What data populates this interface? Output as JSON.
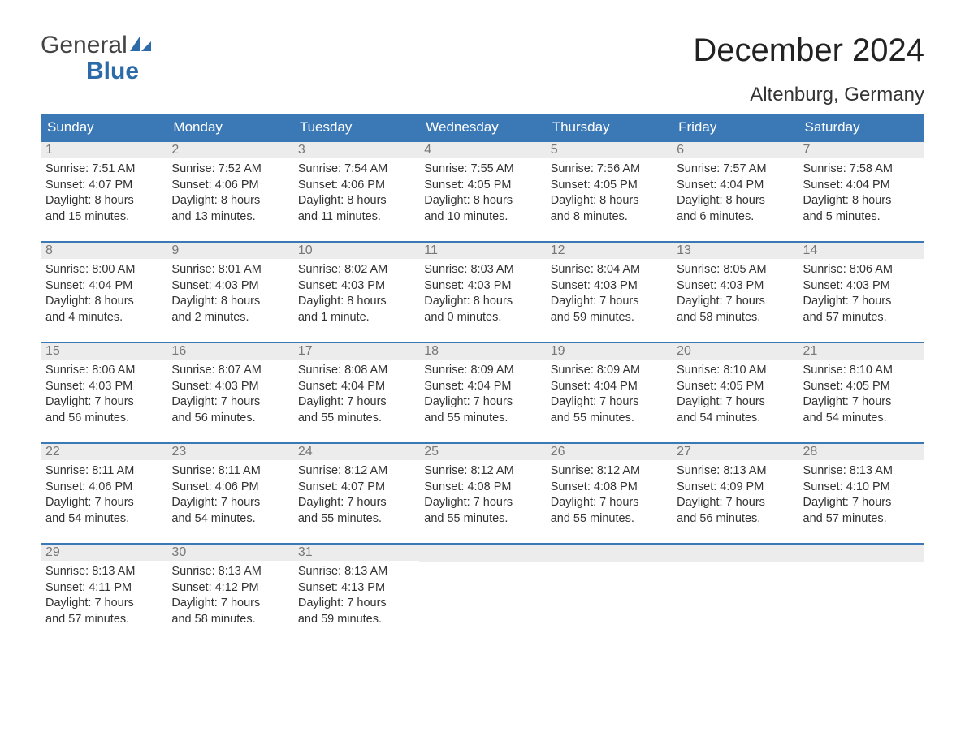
{
  "brand": {
    "line1": "General",
    "line2": "Blue",
    "color_primary": "#2d6aa8",
    "color_text": "#444444"
  },
  "title": "December 2024",
  "subtitle": "Altenburg, Germany",
  "header_bg": "#3a78b6",
  "header_fg": "#ffffff",
  "daynum_bg": "#ececec",
  "daynum_fg": "#777777",
  "body_fg": "#333333",
  "row_border_color": "#3a78b6",
  "background_color": "#ffffff",
  "title_fontsize": 40,
  "subtitle_fontsize": 24,
  "weekday_fontsize": 17,
  "body_fontsize": 14.5,
  "weekdays": [
    "Sunday",
    "Monday",
    "Tuesday",
    "Wednesday",
    "Thursday",
    "Friday",
    "Saturday"
  ],
  "weeks": [
    [
      {
        "n": "1",
        "sunrise": "Sunrise: 7:51 AM",
        "sunset": "Sunset: 4:07 PM",
        "d1": "Daylight: 8 hours",
        "d2": "and 15 minutes."
      },
      {
        "n": "2",
        "sunrise": "Sunrise: 7:52 AM",
        "sunset": "Sunset: 4:06 PM",
        "d1": "Daylight: 8 hours",
        "d2": "and 13 minutes."
      },
      {
        "n": "3",
        "sunrise": "Sunrise: 7:54 AM",
        "sunset": "Sunset: 4:06 PM",
        "d1": "Daylight: 8 hours",
        "d2": "and 11 minutes."
      },
      {
        "n": "4",
        "sunrise": "Sunrise: 7:55 AM",
        "sunset": "Sunset: 4:05 PM",
        "d1": "Daylight: 8 hours",
        "d2": "and 10 minutes."
      },
      {
        "n": "5",
        "sunrise": "Sunrise: 7:56 AM",
        "sunset": "Sunset: 4:05 PM",
        "d1": "Daylight: 8 hours",
        "d2": "and 8 minutes."
      },
      {
        "n": "6",
        "sunrise": "Sunrise: 7:57 AM",
        "sunset": "Sunset: 4:04 PM",
        "d1": "Daylight: 8 hours",
        "d2": "and 6 minutes."
      },
      {
        "n": "7",
        "sunrise": "Sunrise: 7:58 AM",
        "sunset": "Sunset: 4:04 PM",
        "d1": "Daylight: 8 hours",
        "d2": "and 5 minutes."
      }
    ],
    [
      {
        "n": "8",
        "sunrise": "Sunrise: 8:00 AM",
        "sunset": "Sunset: 4:04 PM",
        "d1": "Daylight: 8 hours",
        "d2": "and 4 minutes."
      },
      {
        "n": "9",
        "sunrise": "Sunrise: 8:01 AM",
        "sunset": "Sunset: 4:03 PM",
        "d1": "Daylight: 8 hours",
        "d2": "and 2 minutes."
      },
      {
        "n": "10",
        "sunrise": "Sunrise: 8:02 AM",
        "sunset": "Sunset: 4:03 PM",
        "d1": "Daylight: 8 hours",
        "d2": "and 1 minute."
      },
      {
        "n": "11",
        "sunrise": "Sunrise: 8:03 AM",
        "sunset": "Sunset: 4:03 PM",
        "d1": "Daylight: 8 hours",
        "d2": "and 0 minutes."
      },
      {
        "n": "12",
        "sunrise": "Sunrise: 8:04 AM",
        "sunset": "Sunset: 4:03 PM",
        "d1": "Daylight: 7 hours",
        "d2": "and 59 minutes."
      },
      {
        "n": "13",
        "sunrise": "Sunrise: 8:05 AM",
        "sunset": "Sunset: 4:03 PM",
        "d1": "Daylight: 7 hours",
        "d2": "and 58 minutes."
      },
      {
        "n": "14",
        "sunrise": "Sunrise: 8:06 AM",
        "sunset": "Sunset: 4:03 PM",
        "d1": "Daylight: 7 hours",
        "d2": "and 57 minutes."
      }
    ],
    [
      {
        "n": "15",
        "sunrise": "Sunrise: 8:06 AM",
        "sunset": "Sunset: 4:03 PM",
        "d1": "Daylight: 7 hours",
        "d2": "and 56 minutes."
      },
      {
        "n": "16",
        "sunrise": "Sunrise: 8:07 AM",
        "sunset": "Sunset: 4:03 PM",
        "d1": "Daylight: 7 hours",
        "d2": "and 56 minutes."
      },
      {
        "n": "17",
        "sunrise": "Sunrise: 8:08 AM",
        "sunset": "Sunset: 4:04 PM",
        "d1": "Daylight: 7 hours",
        "d2": "and 55 minutes."
      },
      {
        "n": "18",
        "sunrise": "Sunrise: 8:09 AM",
        "sunset": "Sunset: 4:04 PM",
        "d1": "Daylight: 7 hours",
        "d2": "and 55 minutes."
      },
      {
        "n": "19",
        "sunrise": "Sunrise: 8:09 AM",
        "sunset": "Sunset: 4:04 PM",
        "d1": "Daylight: 7 hours",
        "d2": "and 55 minutes."
      },
      {
        "n": "20",
        "sunrise": "Sunrise: 8:10 AM",
        "sunset": "Sunset: 4:05 PM",
        "d1": "Daylight: 7 hours",
        "d2": "and 54 minutes."
      },
      {
        "n": "21",
        "sunrise": "Sunrise: 8:10 AM",
        "sunset": "Sunset: 4:05 PM",
        "d1": "Daylight: 7 hours",
        "d2": "and 54 minutes."
      }
    ],
    [
      {
        "n": "22",
        "sunrise": "Sunrise: 8:11 AM",
        "sunset": "Sunset: 4:06 PM",
        "d1": "Daylight: 7 hours",
        "d2": "and 54 minutes."
      },
      {
        "n": "23",
        "sunrise": "Sunrise: 8:11 AM",
        "sunset": "Sunset: 4:06 PM",
        "d1": "Daylight: 7 hours",
        "d2": "and 54 minutes."
      },
      {
        "n": "24",
        "sunrise": "Sunrise: 8:12 AM",
        "sunset": "Sunset: 4:07 PM",
        "d1": "Daylight: 7 hours",
        "d2": "and 55 minutes."
      },
      {
        "n": "25",
        "sunrise": "Sunrise: 8:12 AM",
        "sunset": "Sunset: 4:08 PM",
        "d1": "Daylight: 7 hours",
        "d2": "and 55 minutes."
      },
      {
        "n": "26",
        "sunrise": "Sunrise: 8:12 AM",
        "sunset": "Sunset: 4:08 PM",
        "d1": "Daylight: 7 hours",
        "d2": "and 55 minutes."
      },
      {
        "n": "27",
        "sunrise": "Sunrise: 8:13 AM",
        "sunset": "Sunset: 4:09 PM",
        "d1": "Daylight: 7 hours",
        "d2": "and 56 minutes."
      },
      {
        "n": "28",
        "sunrise": "Sunrise: 8:13 AM",
        "sunset": "Sunset: 4:10 PM",
        "d1": "Daylight: 7 hours",
        "d2": "and 57 minutes."
      }
    ],
    [
      {
        "n": "29",
        "sunrise": "Sunrise: 8:13 AM",
        "sunset": "Sunset: 4:11 PM",
        "d1": "Daylight: 7 hours",
        "d2": "and 57 minutes."
      },
      {
        "n": "30",
        "sunrise": "Sunrise: 8:13 AM",
        "sunset": "Sunset: 4:12 PM",
        "d1": "Daylight: 7 hours",
        "d2": "and 58 minutes."
      },
      {
        "n": "31",
        "sunrise": "Sunrise: 8:13 AM",
        "sunset": "Sunset: 4:13 PM",
        "d1": "Daylight: 7 hours",
        "d2": "and 59 minutes."
      },
      {
        "empty": true
      },
      {
        "empty": true
      },
      {
        "empty": true
      },
      {
        "empty": true
      }
    ]
  ]
}
